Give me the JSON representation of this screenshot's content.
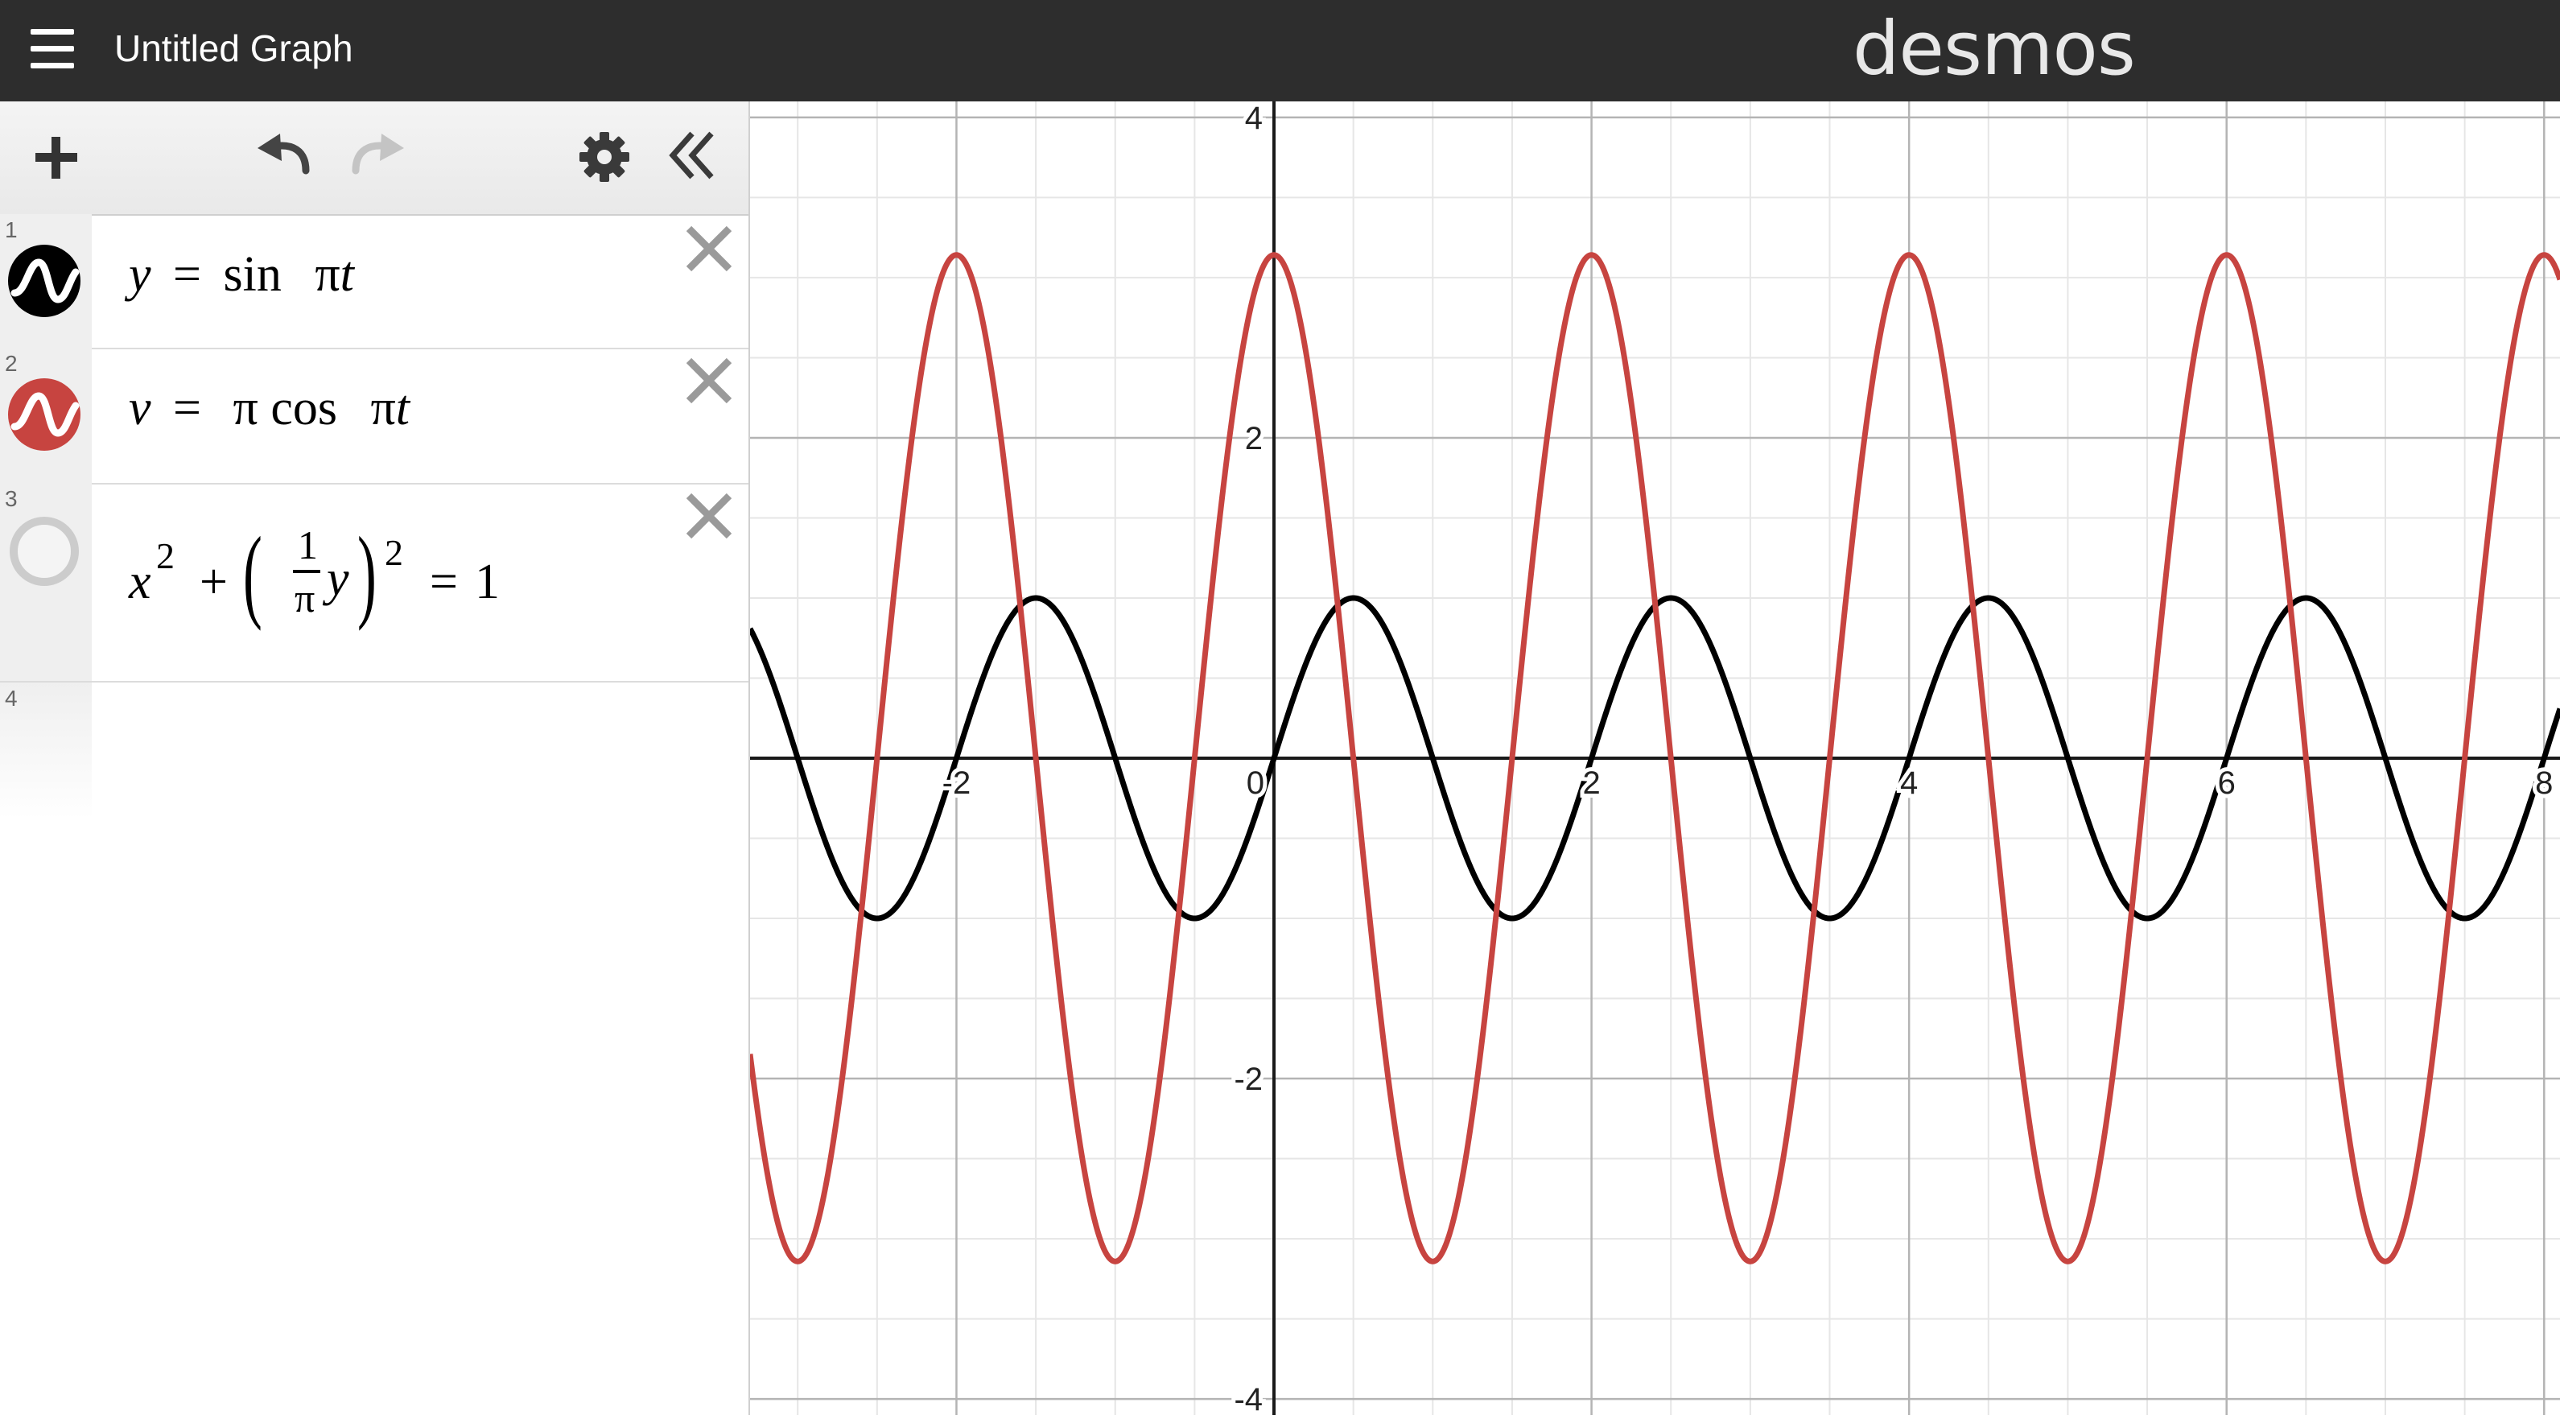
{
  "header": {
    "title": "Untitled Graph",
    "brand": "desmos"
  },
  "toolbar": {
    "icons": [
      "add-icon",
      "undo-icon",
      "redo-icon",
      "gear-icon",
      "collapse-icon"
    ]
  },
  "expressions": [
    {
      "index": "1",
      "color": "#000000",
      "parts": {
        "lhs": "y",
        "eq": "=",
        "fn": "sin",
        "pi": "π",
        "var": "t"
      }
    },
    {
      "index": "2",
      "color": "#c74440",
      "parts": {
        "lhs": "v",
        "eq": "=",
        "coef": "π",
        "fn": "cos",
        "pi": "π",
        "var": "t"
      }
    },
    {
      "index": "3",
      "color": "#cccccc",
      "parts": {
        "x": "x",
        "exp1": "2",
        "plus": "+",
        "lparen": "(",
        "num": "1",
        "den": "π",
        "y": "y",
        "rparen": ")",
        "exp2": "2",
        "eq": "=",
        "rhs": "1"
      }
    },
    {
      "index": "4"
    }
  ],
  "chart_data": {
    "type": "line",
    "xlim": [
      -3.3,
      8.1
    ],
    "ylim": [
      -4.1,
      4.1
    ],
    "grid": true,
    "x_ticks": [
      "-2",
      "0",
      "2",
      "4",
      "6",
      "8"
    ],
    "y_ticks": [
      "4",
      "2",
      "-2",
      "-4"
    ],
    "series": [
      {
        "name": "y = sin πt",
        "color": "#000000",
        "function": "sin(pi*t)"
      },
      {
        "name": "v = π cos πt",
        "color": "#c74440",
        "function": "pi*cos(pi*t)"
      }
    ]
  }
}
